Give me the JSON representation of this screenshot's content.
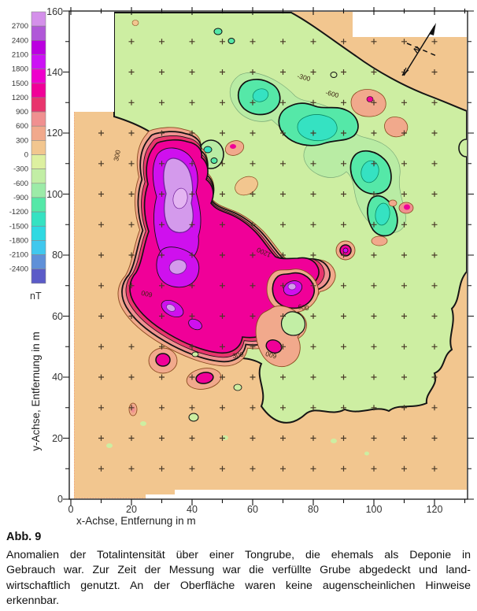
{
  "figure": {
    "caption_label": "Abb. 9",
    "caption_lines": [
      "Anomalien der Totalintensität über einer Tongrube, die ehemals als Deponie in",
      "Gebrauch war. Zur Zeit der Messung war die verfüllte Grube abgedeckt und land-",
      "wirtschaftlich genutzt. An der Oberfläche waren keine augenscheinlichen Hinweise",
      "erkennbar."
    ]
  },
  "legend": {
    "unit": "nT",
    "labels": [
      "2700",
      "2400",
      "2100",
      "1800",
      "1500",
      "1200",
      "900",
      "600",
      "300",
      "0",
      "-300",
      "-600",
      "-900",
      "-1200",
      "-1500",
      "-1800",
      "-2100",
      "-2400"
    ],
    "colors": [
      "#d490ea",
      "#b058d8",
      "#bb00e0",
      "#cc12f5",
      "#ee00cc",
      "#f00098",
      "#e8356d",
      "#f09090",
      "#f1a98c",
      "#f2c68f",
      "#ddf0a0",
      "#c2eea5",
      "#9ceba8",
      "#55e8a8",
      "#35e2c2",
      "#2fd9e2",
      "#40c8ee",
      "#5f90d8",
      "#5b5bc8"
    ]
  },
  "axes": {
    "x": {
      "title": "x-Achse, Entfernung in m",
      "tick_labels": [
        "0",
        "20",
        "40",
        "60",
        "80",
        "100",
        "120"
      ]
    },
    "y": {
      "title": "y-Achse, Entfernung in m",
      "tick_labels": [
        "0",
        "20",
        "40",
        "60",
        "80",
        "100",
        "120",
        "140",
        "160"
      ]
    }
  },
  "map": {
    "north_label": "N",
    "contour_labels": [
      "300",
      "1200",
      "300",
      "600",
      "-300",
      "-600",
      "600",
      "600"
    ]
  },
  "chart_data": {
    "type": "contour",
    "title": "",
    "xlabel": "x-Achse, Entfernung in m",
    "ylabel": "y-Achse, Entfernung in m",
    "x_range_m": [
      0,
      130
    ],
    "y_range_m": [
      0,
      160
    ],
    "unit": "nT",
    "contour_interval_nT": 300,
    "color_scale_levels_nT": [
      2700,
      2400,
      2100,
      1800,
      1500,
      1200,
      900,
      600,
      300,
      0,
      -300,
      -600,
      -900,
      -1200,
      -1500,
      -1800,
      -2100,
      -2400
    ],
    "station_grid_spacing_m": 10,
    "background_level_nT": "0 to 300",
    "anomalies": [
      {
        "name": "main positive anomaly",
        "center_m": [
          37,
          95
        ],
        "extent_m": [
          35,
          55
        ],
        "peak_nT": 2700
      },
      {
        "name": "secondary positive elongated ridge",
        "center_m": [
          38,
          63
        ],
        "extent_m": [
          25,
          15
        ],
        "peak_nT": 2400
      },
      {
        "name": "positive blob",
        "center_m": [
          30,
          46
        ],
        "extent_m": [
          8,
          8
        ],
        "peak_nT": 1200
      },
      {
        "name": "positive blob",
        "center_m": [
          44,
          40
        ],
        "extent_m": [
          10,
          6
        ],
        "peak_nT": 1200
      },
      {
        "name": "positive blob east",
        "center_m": [
          73,
          70
        ],
        "extent_m": [
          14,
          10
        ],
        "peak_nT": 2400
      },
      {
        "name": "positive arc southeast",
        "center_m": [
          77,
          55
        ],
        "extent_m": [
          15,
          18
        ],
        "peak_nT": 1200
      },
      {
        "name": "small positive dots",
        "center_m": [
          110,
          95
        ],
        "extent_m": [
          4,
          4
        ],
        "peak_nT": 1200
      },
      {
        "name": "negative arc",
        "center_m": [
          75,
          120
        ],
        "extent_m": [
          50,
          20
        ],
        "peak_nT": -1500
      },
      {
        "name": "negative blob",
        "center_m": [
          100,
          100
        ],
        "extent_m": [
          10,
          20
        ],
        "peak_nT": -1500
      }
    ],
    "notes": "positive anomalies magenta/purple, negative anomalies green/teal; north arrow in upper right"
  }
}
